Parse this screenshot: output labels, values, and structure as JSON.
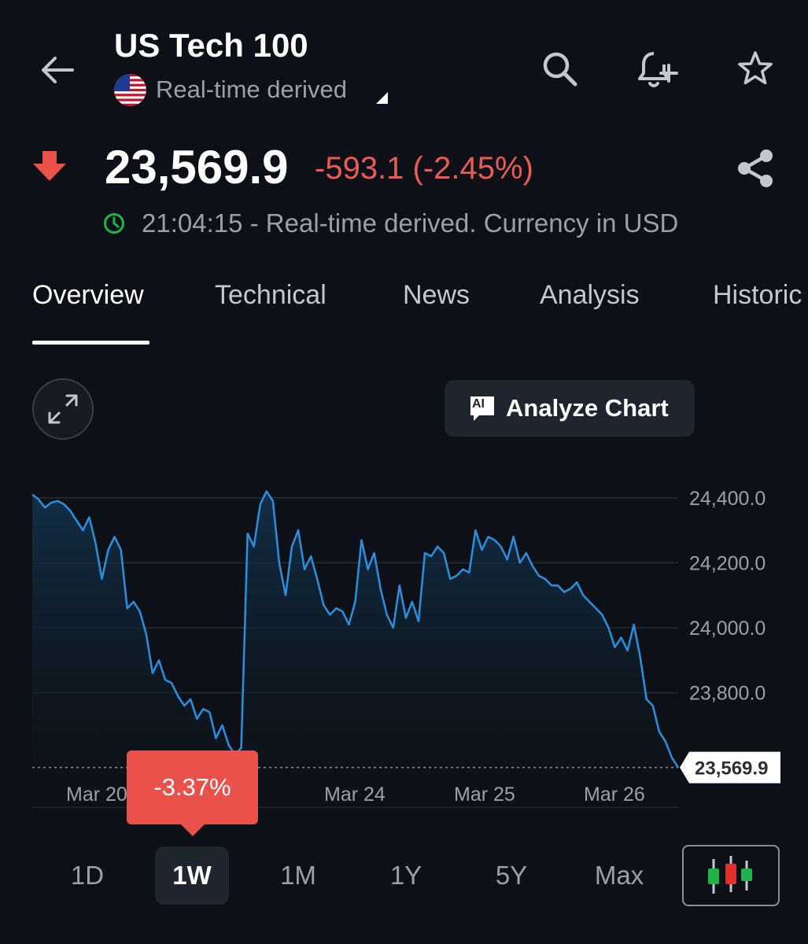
{
  "header": {
    "title": "US Tech 100",
    "subtitle": "Real-time derived"
  },
  "quote": {
    "price": "23,569.9",
    "change": "-593.1 (-2.45%)",
    "time_info": "21:04:15 - Real-time derived. Currency in USD",
    "up_color": "#0ea600",
    "down_color": "#ea5b55"
  },
  "tabs": [
    {
      "label": "Overview",
      "active": true
    },
    {
      "label": "Technical"
    },
    {
      "label": "News"
    },
    {
      "label": "Analysis"
    },
    {
      "label": "Historic"
    }
  ],
  "toolbar": {
    "analyze_label": "Analyze Chart",
    "ai_badge": "AI"
  },
  "performance_badge": "-3.37%",
  "ranges": [
    {
      "label": "1D"
    },
    {
      "label": "1W",
      "active": true
    },
    {
      "label": "1M"
    },
    {
      "label": "1Y"
    },
    {
      "label": "5Y"
    },
    {
      "label": "Max"
    }
  ],
  "chart_data": {
    "type": "area",
    "y_ticks": [
      24400,
      24200,
      24000,
      23800
    ],
    "y_tick_labels": [
      "24,400.0",
      "24,200.0",
      "24,000.0",
      "23,800.0"
    ],
    "ylim": [
      23540,
      24460
    ],
    "x_labels": [
      "Mar 20",
      "Mar 24",
      "Mar 25",
      "Mar 26"
    ],
    "current_value": 23569.9,
    "current_label": "23,569.9",
    "grid": true,
    "line_color": "#2b8fe0",
    "values": [
      24410,
      24395,
      24370,
      24385,
      24390,
      24380,
      24360,
      24330,
      24300,
      24340,
      24260,
      24150,
      24240,
      24280,
      24240,
      24060,
      24080,
      24050,
      23980,
      23860,
      23900,
      23840,
      23830,
      23790,
      23760,
      23780,
      23720,
      23750,
      23740,
      23660,
      23700,
      23640,
      23610,
      23630,
      24290,
      24250,
      24380,
      24420,
      24390,
      24200,
      24100,
      24250,
      24300,
      24180,
      24220,
      24150,
      24070,
      24040,
      24060,
      24050,
      24010,
      24080,
      24270,
      24180,
      24230,
      24120,
      24040,
      24000,
      24130,
      24030,
      24080,
      24020,
      24230,
      24220,
      24250,
      24230,
      24150,
      24160,
      24180,
      24170,
      24300,
      24240,
      24280,
      24270,
      24250,
      24210,
      24280,
      24200,
      24230,
      24190,
      24160,
      24150,
      24130,
      24130,
      24110,
      24120,
      24140,
      24100,
      24080,
      24060,
      24040,
      24000,
      23940,
      23970,
      23930,
      24010,
      23910,
      23780,
      23760,
      23680,
      23650,
      23600,
      23569.9
    ]
  }
}
